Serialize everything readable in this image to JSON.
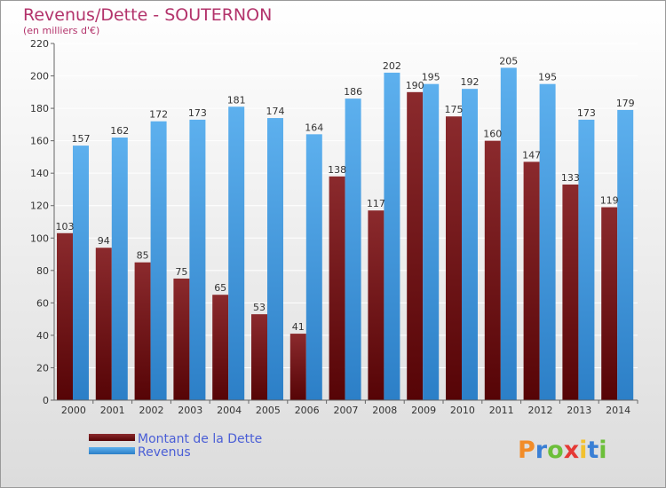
{
  "chart_data": {
    "type": "bar",
    "title": "Revenus/Dette - SOUTERNON",
    "subtitle": "(en milliers d'€)",
    "categories": [
      "2000",
      "2001",
      "2002",
      "2003",
      "2004",
      "2005",
      "2006",
      "2007",
      "2008",
      "2009",
      "2010",
      "2011",
      "2012",
      "2013",
      "2014"
    ],
    "series": [
      {
        "name": "Montant de la Dette",
        "color": "#7a1518",
        "values": [
          103,
          94,
          85,
          75,
          65,
          53,
          41,
          138,
          117,
          190,
          175,
          160,
          147,
          133,
          119
        ]
      },
      {
        "name": "Revenus",
        "color": "#4aa3e8",
        "values": [
          157,
          162,
          172,
          173,
          181,
          174,
          164,
          186,
          202,
          195,
          192,
          205,
          195,
          173,
          179
        ]
      }
    ],
    "ylim": [
      0,
      220
    ],
    "ytick_step": 20,
    "grid": true,
    "legend_position": "bottom-left"
  },
  "logo": {
    "text": "Proxiti",
    "colors": [
      "#f28c28",
      "#3a7fd5",
      "#6cbf3a",
      "#e53935",
      "#f2c12e",
      "#3a7fd5",
      "#6cbf3a"
    ]
  }
}
